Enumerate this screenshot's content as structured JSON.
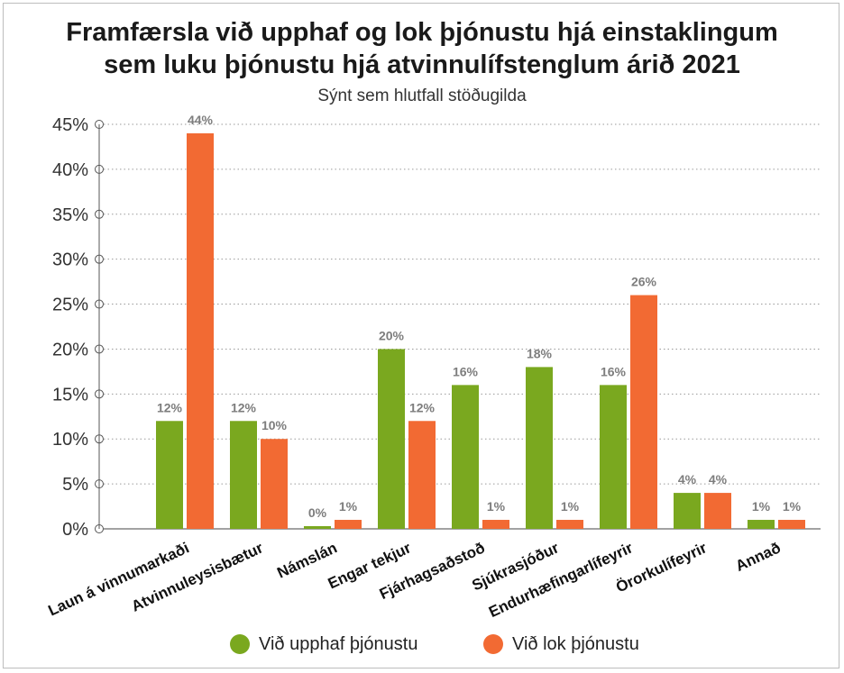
{
  "chart_data": {
    "type": "bar",
    "title_line1": "Framfærsla við upphaf og lok þjónustu hjá einstaklingum",
    "title_line2": "sem luku þjónustu hjá atvinnulífstenglum árið 2021",
    "subtitle": "Sýnt sem hlutfall stöðugilda",
    "categories": [
      "Laun á vinnumarkaði",
      "Atvinnuleysisbætur",
      "Námslán",
      "Engar tekjur",
      "Fjárhagsaðstoð",
      "Sjúkrasjóður",
      "Endurhæfingarlífeyrir",
      "Örorkulífeyrir",
      "Annað"
    ],
    "series": [
      {
        "name": "Við upphaf þjónustu",
        "color": "#7aa81f",
        "values": [
          12,
          12,
          0.3,
          20,
          16,
          18,
          16,
          4,
          1
        ],
        "labels": [
          "12%",
          "12%",
          "0%",
          "20%",
          "16%",
          "18%",
          "16%",
          "4%",
          "1%"
        ]
      },
      {
        "name": "Við lok þjónustu",
        "color": "#f26a33",
        "values": [
          44,
          10,
          1,
          12,
          1,
          1,
          26,
          4,
          1
        ],
        "labels": [
          "44%",
          "10%",
          "1%",
          "12%",
          "1%",
          "1%",
          "26%",
          "4%",
          "1%"
        ]
      }
    ],
    "yticks": [
      "0%",
      "5%",
      "10%",
      "15%",
      "20%",
      "25%",
      "30%",
      "35%",
      "40%",
      "45%"
    ],
    "ylim": [
      0,
      45
    ],
    "grid": true,
    "legend_position": "bottom"
  }
}
